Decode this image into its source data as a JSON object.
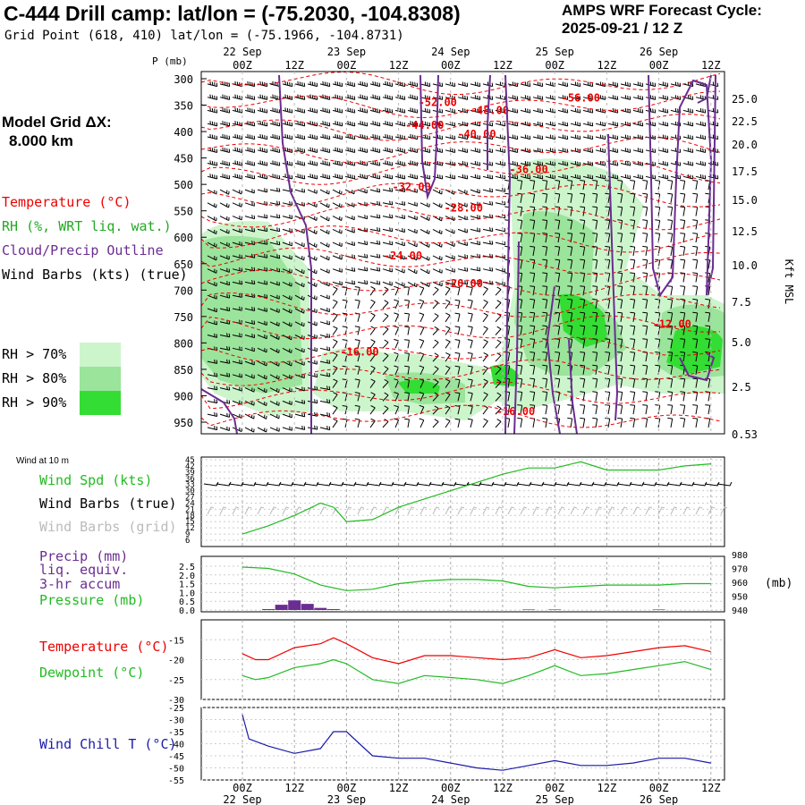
{
  "header": {
    "title": "C-444 Drill camp:  lat/lon = (-75.2030, -104.8308)",
    "grid_point": "Grid Point (618, 410) lat/lon = (-75.1966, -104.8731)",
    "cycle_line1": "AMPS WRF Forecast Cycle:",
    "cycle_line2": "2025-09-21 / 12  Z"
  },
  "model_grid": {
    "line1": "Model Grid ΔX:",
    "line2": "8.000 km"
  },
  "legend": {
    "temperature": "Temperature (°C)",
    "rh": "RH (%, WRT liq. wat.)",
    "cloud": "Cloud/Precip Outline",
    "wind": "Wind Barbs (kts) (true)",
    "rh70": "RH > 70%",
    "rh80": "RH > 80%",
    "rh90": "RH > 90%",
    "wind_10m": "Wind at 10 m",
    "wind_spd": "Wind Spd (kts)",
    "barbs_true": "Wind Barbs (true)",
    "barbs_grid": "Wind Barbs (grid)",
    "precip1": "Precip (mm)",
    "precip2": "liq. equiv.",
    "precip3": "3-hr accum",
    "pressure": "Pressure (mb)",
    "temp2": "Temperature (°C)",
    "dewpoint": "Dewpoint (°C)",
    "windchill": "Wind Chill T (°C)"
  },
  "colors": {
    "temperature": "#ee0000",
    "rh": "#22aa22",
    "cloud": "#6a2d91",
    "pressure": "#22bb22",
    "wind_speed": "#22bb22",
    "windchill": "#1a1aaa",
    "barbs_grid": "#bbbbbb",
    "rh70": "#ccf5cc",
    "rh80": "#9be49b",
    "rh90": "#33dd33"
  },
  "chart_data": [
    {
      "type": "contour",
      "name": "cross-section",
      "y_axis_label": "P (mb)",
      "pressure_ticks": [
        300,
        350,
        400,
        450,
        500,
        550,
        600,
        650,
        700,
        750,
        800,
        850,
        900,
        950
      ],
      "right_axis_label": "Kft MSL",
      "height_ticks_kft": [
        "25.0",
        "22.5",
        "20.0",
        "17.5",
        "15.0",
        "12.5",
        "10.0",
        "7.5",
        "5.0",
        "2.5",
        "0.53"
      ],
      "time_ticks": [
        "00Z",
        "12Z",
        "00Z",
        "12Z",
        "00Z",
        "12Z",
        "00Z",
        "12Z",
        "00Z",
        "12Z"
      ],
      "date_labels": [
        "22 Sep",
        "23 Sep",
        "24 Sep",
        "25 Sep",
        "26 Sep"
      ],
      "temperature_labels": [
        {
          "label": "-52.00",
          "hour": 45,
          "p": 345
        },
        {
          "label": "-56.00",
          "hour": 78,
          "p": 336
        },
        {
          "label": "-48.00",
          "hour": 57,
          "p": 360
        },
        {
          "label": "-44.00",
          "hour": 42,
          "p": 388
        },
        {
          "label": "-40.00",
          "hour": 54,
          "p": 405
        },
        {
          "label": "-36.00",
          "hour": 66,
          "p": 472
        },
        {
          "label": "-32.00",
          "hour": 39,
          "p": 505
        },
        {
          "label": "-28.00",
          "hour": 51,
          "p": 545
        },
        {
          "label": "-24.00",
          "hour": 37,
          "p": 635
        },
        {
          "label": "-20.00",
          "hour": 51,
          "p": 688
        },
        {
          "label": "-12.00",
          "hour": 99,
          "p": 765
        },
        {
          "label": "-16.00",
          "hour": 27,
          "p": 817
        },
        {
          "label": "-16.00",
          "hour": 63,
          "p": 930
        }
      ]
    },
    {
      "type": "line",
      "name": "wind-speed",
      "ylabel": "kts",
      "y_ticks": [
        45,
        42,
        39,
        36,
        33,
        30,
        27,
        24,
        21,
        18,
        15,
        12,
        9,
        6
      ],
      "ylim": [
        6,
        45
      ],
      "x_hours": [
        0,
        6,
        12,
        18,
        21,
        24,
        30,
        36,
        42,
        48,
        54,
        60,
        66,
        72,
        78,
        84,
        90,
        96,
        102,
        108
      ],
      "values": [
        9,
        13,
        18,
        24,
        22,
        15,
        16,
        22,
        26,
        30,
        34,
        38,
        41,
        41,
        44,
        40,
        40,
        40,
        42,
        43
      ]
    },
    {
      "type": "bar+line",
      "name": "precip-pressure",
      "precip_ticks": [
        "2.5",
        "2.0",
        "1.5",
        "1.0",
        "0.5",
        "0.0"
      ],
      "precip_ylim": [
        0,
        2.5
      ],
      "precip_hours": [
        6,
        9,
        12,
        15,
        18,
        21,
        66,
        72,
        96
      ],
      "precip_mm": [
        0.05,
        0.3,
        0.55,
        0.35,
        0.12,
        0.05,
        0.03,
        0.03,
        0.03
      ],
      "pressure_ticks": [
        980,
        970,
        960,
        950,
        940
      ],
      "pressure_ylim": [
        940,
        980
      ],
      "pressure_unit": "(mb)",
      "x_hours": [
        0,
        6,
        12,
        18,
        24,
        30,
        36,
        42,
        48,
        54,
        60,
        66,
        72,
        78,
        84,
        90,
        96,
        102,
        108
      ],
      "pressure_mb": [
        971,
        970,
        966,
        958,
        954,
        955,
        959,
        961,
        962,
        962,
        961,
        957,
        956,
        957,
        958,
        958,
        958,
        959,
        959
      ]
    },
    {
      "type": "line",
      "name": "temperature-dewpoint",
      "y_ticks": [
        -15,
        -20,
        -25,
        -30
      ],
      "ylim": [
        -30,
        -10
      ],
      "x_hours": [
        0,
        3,
        6,
        12,
        18,
        21,
        24,
        30,
        36,
        42,
        48,
        54,
        60,
        66,
        72,
        78,
        84,
        90,
        96,
        102,
        108
      ],
      "temperature": [
        -18.5,
        -20,
        -20,
        -17,
        -16,
        -14.5,
        -16,
        -19.5,
        -21,
        -19,
        -19,
        -19.5,
        -20,
        -19.5,
        -17.5,
        -19.5,
        -19,
        -18,
        -17,
        -16.5,
        -18
      ],
      "dewpoint": [
        -24,
        -25,
        -24.5,
        -22,
        -21,
        -20,
        -21,
        -25,
        -26,
        -24,
        -24.5,
        -25,
        -26,
        -24,
        -21.5,
        -24,
        -23.5,
        -22.5,
        -21.5,
        -20.5,
        -22.5
      ]
    },
    {
      "type": "line",
      "name": "wind-chill",
      "y_ticks": [
        -25,
        -30,
        -35,
        -40,
        -45,
        -50,
        -55
      ],
      "ylim": [
        -55,
        -25
      ],
      "x_hours": [
        0,
        1.5,
        6,
        12,
        18,
        21,
        24,
        27,
        30,
        36,
        42,
        48,
        54,
        60,
        66,
        72,
        78,
        84,
        90,
        96,
        102,
        108
      ],
      "values": [
        -28,
        -38,
        -41,
        -44,
        -42,
        -35,
        -35,
        -40,
        -45,
        -46,
        -46,
        -48,
        -50,
        -51,
        -49,
        -47,
        -49,
        -49,
        -48,
        -46,
        -46,
        -48
      ]
    }
  ]
}
